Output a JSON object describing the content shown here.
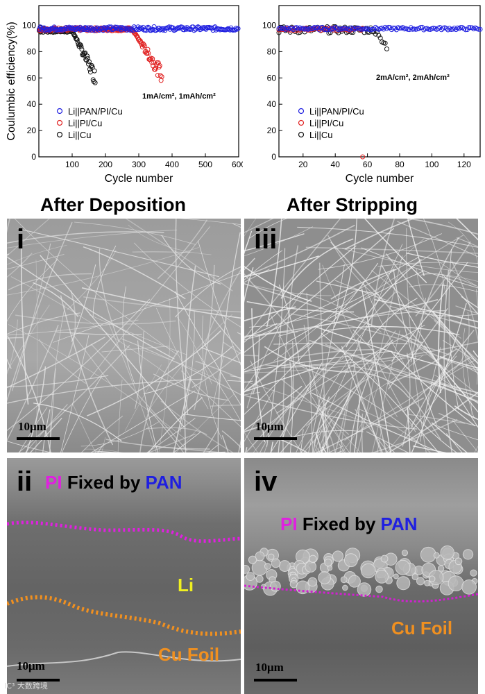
{
  "chart_data": [
    {
      "type": "scatter",
      "ylabel": "Coulumbic efficiency(%)",
      "xlabel": "Cycle number",
      "xlim": [
        0,
        600
      ],
      "ylim": [
        0,
        115
      ],
      "xticks": [
        100,
        200,
        300,
        400,
        500,
        600
      ],
      "yticks": [
        0,
        20,
        40,
        60,
        80,
        100
      ],
      "condition": "1mA/cm², 1mAh/cm²",
      "legend": [
        "Li||PAN/PI/Cu",
        "Li||PI/Cu",
        "Li||Cu"
      ],
      "series": [
        {
          "name": "Li||PAN/PI/Cu",
          "color": "#2020e0",
          "cycles": 600,
          "base": 97.5,
          "spread": 1.4,
          "decline_start": 0,
          "end": 0
        },
        {
          "name": "Li||PI/Cu",
          "color": "#e02020",
          "cycles": 370,
          "base": 97.0,
          "spread": 1.2,
          "decline_start": 280,
          "end": 62
        },
        {
          "name": "Li||Cu",
          "color": "#111111",
          "cycles": 170,
          "base": 96.0,
          "spread": 1.5,
          "decline_start": 100,
          "end": 60
        }
      ]
    },
    {
      "type": "scatter",
      "xlabel": "Cycle number",
      "xlim": [
        5,
        130
      ],
      "ylim": [
        0,
        115
      ],
      "xticks": [
        20,
        40,
        60,
        80,
        100,
        120
      ],
      "yticks": [
        0,
        20,
        40,
        60,
        80,
        100
      ],
      "condition": "2mA/cm², 2mAh/cm²",
      "legend": [
        "Li||PAN/PI/Cu",
        "Li||PI/Cu",
        "Li||Cu"
      ],
      "series": [
        {
          "name": "Li||PAN/PI/Cu",
          "color": "#2020e0",
          "cycles": 130,
          "base": 97.5,
          "spread": 1.0,
          "decline_start": 0,
          "end": 0
        },
        {
          "name": "Li||PI/Cu",
          "color": "#e02020",
          "cycles": 57,
          "base": 97.0,
          "spread": 1.0,
          "decline_start": 0,
          "end": 0,
          "outlier": [
            57,
            0
          ]
        },
        {
          "name": "Li||Cu",
          "color": "#111111",
          "cycles": 72,
          "base": 96.5,
          "spread": 2.5,
          "decline_start": 62,
          "end": 88
        }
      ]
    }
  ],
  "headings": {
    "deposition": "After Deposition",
    "stripping": "After Stripping"
  },
  "panels": {
    "i": {
      "label": "i",
      "scale": "10μm"
    },
    "iii": {
      "label": "iii",
      "scale": "10μm"
    },
    "ii": {
      "label": "ii",
      "scale": "10μm",
      "pi": "PI",
      "fixed": "Fixed by",
      "pan": "PAN",
      "li": "Li",
      "cu": "Cu Foil"
    },
    "iv": {
      "label": "iv",
      "scale": "10μm",
      "pi": "PI",
      "fixed": "Fixed by",
      "pan": "PAN",
      "cu": "Cu Foil"
    }
  },
  "watermark": "IC³ 大数跨境"
}
